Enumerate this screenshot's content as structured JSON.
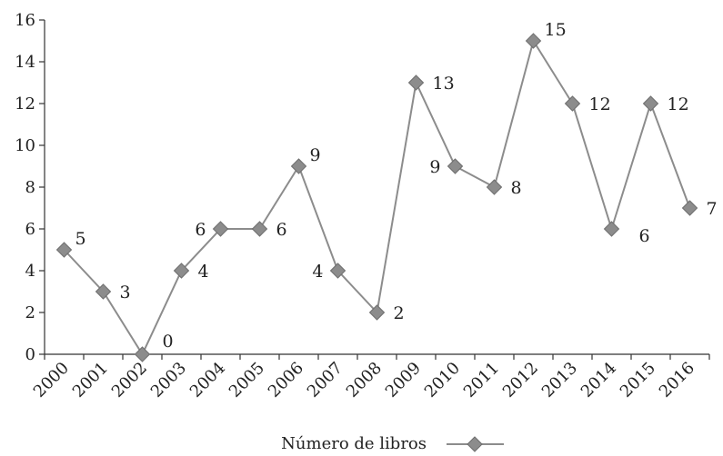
{
  "chart_data": {
    "type": "line",
    "categories": [
      "2000",
      "2001",
      "2002",
      "2003",
      "2004",
      "2005",
      "2006",
      "2007",
      "2008",
      "2009",
      "2010",
      "2011",
      "2012",
      "2013",
      "2014",
      "2015",
      "2016"
    ],
    "series": [
      {
        "name": "Número de libros",
        "values": [
          5,
          3,
          0,
          4,
          6,
          6,
          9,
          4,
          2,
          13,
          9,
          8,
          15,
          12,
          6,
          12,
          7
        ]
      }
    ],
    "ylim": [
      0,
      16
    ],
    "yticks": [
      0,
      2,
      4,
      6,
      8,
      10,
      12,
      14,
      16
    ],
    "grid": false,
    "legend_position": "bottom-center",
    "colors": {
      "line": "#8c8c8c",
      "marker": "#8c8c8c",
      "marker_stroke": "#6e6e6e",
      "axis": "#333333"
    },
    "marker": "diamond"
  }
}
